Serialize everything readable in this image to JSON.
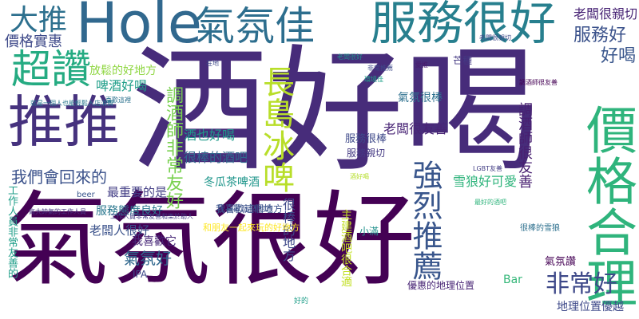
{
  "words": [
    {
      "key": "w1",
      "text": "氣氛很好",
      "color": "#440154"
    },
    {
      "key": "w2",
      "text": "酒好喝",
      "color": "#472c7a"
    },
    {
      "key": "w3",
      "text": "Hole",
      "color": "#31688e"
    },
    {
      "key": "w4",
      "text": "推推",
      "color": "#46327e"
    },
    {
      "key": "w5",
      "text": "服務很好",
      "color": "#277f8e"
    },
    {
      "key": "w6",
      "text": "價格合理",
      "color": "#2fb47c"
    },
    {
      "key": "w7",
      "text": "氣氛佳",
      "color": "#2d6e8e"
    },
    {
      "key": "w8",
      "text": "大推",
      "color": "#2d708e"
    },
    {
      "key": "w9",
      "text": "超讚",
      "color": "#25ab82"
    },
    {
      "key": "w10",
      "text": "長島冰啤",
      "color": "#b8de29"
    },
    {
      "key": "w11",
      "text": "強烈推薦",
      "color": "#39568c"
    },
    {
      "key": "w12",
      "text": "非常好",
      "color": "#3e4989"
    },
    {
      "key": "w13",
      "text": "老闆很親切",
      "color": "#482475"
    },
    {
      "key": "w14",
      "text": "服務好",
      "color": "#3b528b"
    },
    {
      "key": "w15",
      "text": "好喝",
      "color": "#39568c"
    },
    {
      "key": "w16",
      "text": "價格實惠",
      "color": "#3e4989"
    },
    {
      "key": "w17",
      "text": "放鬆的好地方",
      "color": "#90d743"
    },
    {
      "key": "w18",
      "text": "啤酒好喝",
      "color": "#1f9e89"
    },
    {
      "key": "w19",
      "text": "調酒師很友善",
      "color": "#482071"
    },
    {
      "key": "w20",
      "text": "調酒師非常友好",
      "color": "#7ad151"
    },
    {
      "key": "w21",
      "text": "酒也好喝",
      "color": "#1f9a8a"
    },
    {
      "key": "w22",
      "text": "很棒的酒吧",
      "color": "#31688e"
    },
    {
      "key": "w23",
      "text": "我們會回來的",
      "color": "#3b528b"
    },
    {
      "key": "w24",
      "text": "冬瓜茶啤酒",
      "color": "#1f968b"
    },
    {
      "key": "w25",
      "text": "最重要的是",
      "color": "#433e85"
    },
    {
      "key": "w26",
      "text": "服務態度良好",
      "color": "#2a778e"
    },
    {
      "key": "w27",
      "text": "老闆人很好",
      "color": "#3b528b"
    },
    {
      "key": "w28",
      "text": "我喜歡它",
      "color": "#482878"
    },
    {
      "key": "w29",
      "text": "氣氛好",
      "color": "#31688e"
    },
    {
      "key": "w30",
      "text": "IPA",
      "color": "#3e4989"
    },
    {
      "key": "w31",
      "text": "我喜歡這個地方",
      "color": "#3b528b"
    },
    {
      "key": "w32",
      "text": "氣氛很棒",
      "color": "#2d708e"
    },
    {
      "key": "w33",
      "text": "服務很棒",
      "color": "#3e4989"
    },
    {
      "key": "w34",
      "text": "老闆很友善",
      "color": "#482475"
    },
    {
      "key": "w35",
      "text": "服務親切",
      "color": "#443983"
    },
    {
      "key": "w36",
      "text": "雪狼好可愛",
      "color": "#2fb47c"
    },
    {
      "key": "w37",
      "text": "很棒的地方",
      "color": "#3e4989"
    },
    {
      "key": "w38",
      "text": "主建酒吧很合適",
      "color": "#c2df23"
    },
    {
      "key": "w39",
      "text": "氣氛讚",
      "color": "#440154"
    },
    {
      "key": "w40",
      "text": "地理位置優越",
      "color": "#3e4989"
    },
    {
      "key": "w41",
      "text": "工作人員非常友善的",
      "color": "#1f9e89"
    },
    {
      "key": "w42",
      "text": "小滿",
      "color": "#21918c"
    },
    {
      "key": "w43",
      "text": "Bar",
      "color": "#35b779"
    },
    {
      "key": "w44",
      "text": "芒種",
      "color": "#443983"
    },
    {
      "key": "w45",
      "text": "beer",
      "color": "#39568c"
    },
    {
      "key": "w46",
      "text": "工作人員非常友善和樂於助人",
      "color": "#433e85"
    },
    {
      "key": "w47",
      "text": "和朋友一起來玩的好地方",
      "color": "#fde725"
    },
    {
      "key": "w48",
      "text": "我喜歡這個地方",
      "color": "#3b528b"
    },
    {
      "key": "w49",
      "text": "LGBT友善",
      "color": "#433e85"
    },
    {
      "key": "w50",
      "text": "優惠的地理位置",
      "color": "#482475"
    },
    {
      "key": "w51",
      "text": "好的",
      "color": "#1f9e89"
    },
    {
      "key": "w52",
      "text": "很棒的雪狼",
      "color": "#2d708e"
    },
    {
      "key": "w53",
      "text": "調酒師很友善",
      "color": "#440154"
    },
    {
      "key": "w54",
      "text": "非常推薦",
      "color": "#3e4989"
    },
    {
      "key": "w55",
      "text": "環境佳",
      "color": "#1fa088"
    },
    {
      "key": "w56",
      "text": "就是一個人也能輕鬆入店消費",
      "color": "#2a788e"
    },
    {
      "key": "w57",
      "text": "高大帥氣的工作人員",
      "color": "#46337e"
    },
    {
      "key": "w58",
      "text": "老闆很親切",
      "color": "#3e4989"
    },
    {
      "key": "w59",
      "text": "喜歡這裡",
      "color": "#2c728e"
    },
    {
      "key": "w60",
      "text": "老闆很好",
      "color": "#21918c"
    },
    {
      "key": "w61",
      "text": "在地",
      "color": "#3e4989"
    },
    {
      "key": "w62",
      "text": "酒好喝",
      "color": "#b5de2b"
    },
    {
      "key": "w63",
      "text": "愛推",
      "color": "#481a6c"
    },
    {
      "key": "w64",
      "text": "最好的酒吧",
      "color": "#2fb47c"
    }
  ]
}
